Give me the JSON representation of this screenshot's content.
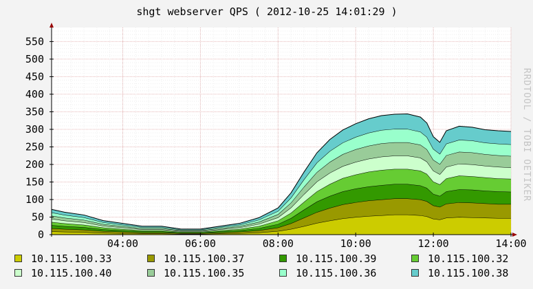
{
  "chart_data": {
    "type": "area",
    "stacked": true,
    "title": "shgt webserver QPS ( 2012-10-25 14:01:29 )",
    "watermark": "RRDTOOL / TOBI OETIKER",
    "ylim": [
      0,
      590
    ],
    "yticks": [
      0,
      50,
      100,
      150,
      200,
      250,
      300,
      350,
      400,
      450,
      500,
      550
    ],
    "ytick_labels": [
      "0",
      "50",
      "100",
      "150",
      "200",
      "250",
      "300",
      "350",
      "400",
      "450",
      "500",
      "550"
    ],
    "xlim": [
      "02:10",
      "14:00"
    ],
    "xticks": [
      "04:00",
      "06:00",
      "08:00",
      "10:00",
      "12:00",
      "14:00"
    ],
    "grid": true,
    "legend_position": "bottom",
    "x": [
      "02:10",
      "02:30",
      "03:00",
      "03:30",
      "04:00",
      "04:30",
      "05:00",
      "05:30",
      "06:00",
      "06:30",
      "07:00",
      "07:30",
      "08:00",
      "08:20",
      "08:40",
      "09:00",
      "09:20",
      "09:40",
      "10:00",
      "10:20",
      "10:40",
      "11:00",
      "11:20",
      "11:40",
      "11:50",
      "12:00",
      "12:10",
      "12:20",
      "12:40",
      "13:00",
      "13:20",
      "13:40",
      "14:00"
    ],
    "series": [
      {
        "name": "10.115.100.33",
        "color": "#cccc00",
        "values": [
          9,
          8,
          7,
          5,
          4,
          3,
          3,
          2,
          2,
          3,
          4,
          6,
          10,
          16,
          24,
          33,
          40,
          46,
          50,
          53,
          55,
          57,
          57,
          55,
          52,
          45,
          43,
          48,
          50,
          49,
          48,
          47,
          47
        ]
      },
      {
        "name": "10.115.100.37",
        "color": "#999900",
        "values": [
          9,
          8,
          7,
          5,
          4,
          3,
          3,
          2,
          2,
          3,
          4,
          6,
          10,
          16,
          24,
          31,
          36,
          40,
          42,
          44,
          45,
          46,
          46,
          45,
          43,
          38,
          36,
          40,
          42,
          42,
          41,
          40,
          40
        ]
      },
      {
        "name": "10.115.100.39",
        "color": "#339900",
        "values": [
          9,
          8,
          7,
          5,
          4,
          3,
          3,
          2,
          2,
          3,
          4,
          6,
          10,
          15,
          23,
          30,
          34,
          37,
          39,
          40,
          41,
          41,
          41,
          40,
          38,
          33,
          31,
          35,
          37,
          37,
          36,
          36,
          35
        ]
      },
      {
        "name": "10.115.100.32",
        "color": "#66cc33",
        "values": [
          9,
          8,
          7,
          5,
          4,
          3,
          3,
          2,
          2,
          3,
          4,
          6,
          10,
          15,
          22,
          29,
          34,
          38,
          40,
          42,
          43,
          43,
          43,
          42,
          40,
          35,
          33,
          37,
          39,
          38,
          38,
          37,
          37
        ]
      },
      {
        "name": "10.115.100.40",
        "color": "#ccffcc",
        "values": [
          9,
          8,
          7,
          5,
          4,
          3,
          3,
          2,
          2,
          3,
          4,
          6,
          9,
          15,
          22,
          28,
          32,
          34,
          36,
          37,
          38,
          38,
          38,
          37,
          35,
          31,
          29,
          33,
          34,
          34,
          33,
          33,
          32
        ]
      },
      {
        "name": "10.115.100.35",
        "color": "#99cc99",
        "values": [
          9,
          8,
          7,
          5,
          4,
          3,
          3,
          2,
          2,
          3,
          4,
          6,
          9,
          14,
          21,
          27,
          31,
          34,
          36,
          37,
          38,
          38,
          38,
          37,
          35,
          31,
          29,
          33,
          34,
          34,
          33,
          33,
          33
        ]
      },
      {
        "name": "10.115.100.36",
        "color": "#99ffcc",
        "values": [
          9,
          8,
          7,
          5,
          4,
          3,
          3,
          2,
          2,
          3,
          4,
          6,
          9,
          14,
          21,
          27,
          31,
          33,
          35,
          37,
          38,
          38,
          38,
          37,
          35,
          31,
          29,
          33,
          34,
          34,
          33,
          33,
          33
        ]
      },
      {
        "name": "10.115.100.38",
        "color": "#66cccc",
        "values": [
          9,
          8,
          7,
          5,
          4,
          3,
          3,
          2,
          2,
          3,
          4,
          6,
          9,
          14,
          21,
          28,
          33,
          36,
          38,
          40,
          41,
          42,
          43,
          42,
          40,
          35,
          33,
          37,
          39,
          38,
          37,
          37,
          37
        ]
      }
    ]
  }
}
